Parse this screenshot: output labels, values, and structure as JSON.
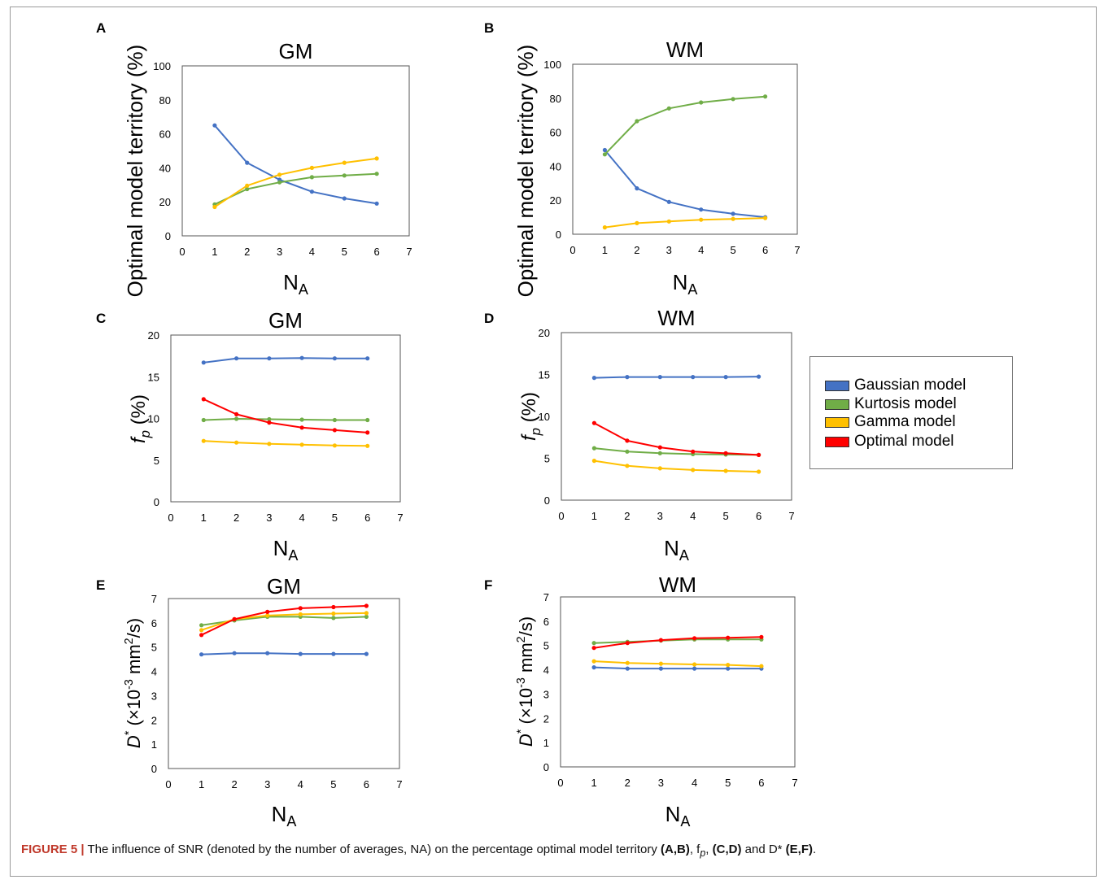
{
  "figure": {
    "caption_label": "FIGURE 5 |",
    "caption_text_1": " The influence of SNR (denoted by the number of averages, NA) on the percentage optimal model territory ",
    "caption_ref_1": "(A,B)",
    "caption_text_2": ", f",
    "caption_sub": "p",
    "caption_text_3": ", ",
    "caption_ref_2": "(C,D)",
    "caption_text_4": " and D* ",
    "caption_ref_3": "(E,F)",
    "caption_text_5": "."
  },
  "legend": {
    "items": [
      {
        "label": "Gaussian model",
        "color": "#4472C4"
      },
      {
        "label": "Kurtosis model",
        "color": "#70AD47"
      },
      {
        "label": "Gamma model",
        "color": "#FFC000"
      },
      {
        "label": "Optimal model",
        "color": "#FF0000"
      }
    ]
  },
  "chart_data": [
    {
      "panel": "A",
      "type": "line",
      "title": "GM",
      "xlabel": "N",
      "xlabel_sub": "A",
      "ylabel": "Optimal model territory (%)",
      "xlim": [
        0,
        7
      ],
      "ylim": [
        0,
        100
      ],
      "xticks": [
        0,
        1,
        2,
        3,
        4,
        5,
        6,
        7
      ],
      "yticks": [
        0,
        20,
        40,
        60,
        80,
        100
      ],
      "series": [
        {
          "name": "Gaussian model",
          "color": "#4472C4",
          "x": [
            1,
            2,
            3,
            4,
            5,
            6
          ],
          "y": [
            65,
            43,
            33,
            26,
            22,
            19
          ]
        },
        {
          "name": "Kurtosis model",
          "color": "#70AD47",
          "x": [
            1,
            2,
            3,
            4,
            5,
            6
          ],
          "y": [
            18.5,
            27.5,
            31.5,
            34.5,
            35.5,
            36.5
          ]
        },
        {
          "name": "Gamma model",
          "color": "#FFC000",
          "x": [
            1,
            2,
            3,
            4,
            5,
            6
          ],
          "y": [
            17,
            29.5,
            36,
            40,
            43,
            45.5
          ]
        }
      ]
    },
    {
      "panel": "B",
      "type": "line",
      "title": "WM",
      "xlabel": "N",
      "xlabel_sub": "A",
      "ylabel": "Optimal model territory (%)",
      "xlim": [
        0,
        7
      ],
      "ylim": [
        0,
        100
      ],
      "xticks": [
        0,
        1,
        2,
        3,
        4,
        5,
        6,
        7
      ],
      "yticks": [
        0,
        20,
        40,
        60,
        80,
        100
      ],
      "series": [
        {
          "name": "Gaussian model",
          "color": "#4472C4",
          "x": [
            1,
            2,
            3,
            4,
            5,
            6
          ],
          "y": [
            49.5,
            27,
            19,
            14.5,
            12,
            10
          ]
        },
        {
          "name": "Kurtosis model",
          "color": "#70AD47",
          "x": [
            1,
            2,
            3,
            4,
            5,
            6
          ],
          "y": [
            47,
            66.5,
            74,
            77.5,
            79.5,
            81
          ]
        },
        {
          "name": "Gamma model",
          "color": "#FFC000",
          "x": [
            1,
            2,
            3,
            4,
            5,
            6
          ],
          "y": [
            4,
            6.5,
            7.5,
            8.5,
            9,
            9.5
          ]
        }
      ]
    },
    {
      "panel": "C",
      "type": "line",
      "title": "GM",
      "xlabel": "N",
      "xlabel_sub": "A",
      "ylabel": "f",
      "ylabel_sub": "p",
      "ylabel_suffix": " (%)",
      "xlim": [
        0,
        7
      ],
      "ylim": [
        0,
        20
      ],
      "xticks": [
        0,
        1,
        2,
        3,
        4,
        5,
        6,
        7
      ],
      "yticks": [
        0,
        5,
        10,
        15,
        20
      ],
      "series": [
        {
          "name": "Gaussian model",
          "color": "#4472C4",
          "x": [
            1,
            2,
            3,
            4,
            5,
            6
          ],
          "y": [
            16.7,
            17.2,
            17.2,
            17.25,
            17.2,
            17.2
          ]
        },
        {
          "name": "Kurtosis model",
          "color": "#70AD47",
          "x": [
            1,
            2,
            3,
            4,
            5,
            6
          ],
          "y": [
            9.8,
            9.95,
            9.9,
            9.85,
            9.8,
            9.8
          ]
        },
        {
          "name": "Gamma model",
          "color": "#FFC000",
          "x": [
            1,
            2,
            3,
            4,
            5,
            6
          ],
          "y": [
            7.3,
            7.1,
            6.95,
            6.85,
            6.75,
            6.7
          ]
        },
        {
          "name": "Optimal model",
          "color": "#FF0000",
          "x": [
            1,
            2,
            3,
            4,
            5,
            6
          ],
          "y": [
            12.3,
            10.5,
            9.5,
            8.9,
            8.6,
            8.3
          ]
        }
      ]
    },
    {
      "panel": "D",
      "type": "line",
      "title": "WM",
      "xlabel": "N",
      "xlabel_sub": "A",
      "ylabel": "f",
      "ylabel_sub": "p",
      "ylabel_suffix": " (%)",
      "xlim": [
        0,
        7
      ],
      "ylim": [
        0,
        20
      ],
      "xticks": [
        0,
        1,
        2,
        3,
        4,
        5,
        6,
        7
      ],
      "yticks": [
        0,
        5,
        10,
        15,
        20
      ],
      "series": [
        {
          "name": "Gaussian model",
          "color": "#4472C4",
          "x": [
            1,
            2,
            3,
            4,
            5,
            6
          ],
          "y": [
            14.6,
            14.7,
            14.7,
            14.7,
            14.7,
            14.75
          ]
        },
        {
          "name": "Kurtosis model",
          "color": "#70AD47",
          "x": [
            1,
            2,
            3,
            4,
            5,
            6
          ],
          "y": [
            6.2,
            5.8,
            5.6,
            5.5,
            5.45,
            5.4
          ]
        },
        {
          "name": "Gamma model",
          "color": "#FFC000",
          "x": [
            1,
            2,
            3,
            4,
            5,
            6
          ],
          "y": [
            4.7,
            4.1,
            3.8,
            3.6,
            3.5,
            3.4
          ]
        },
        {
          "name": "Optimal model",
          "color": "#FF0000",
          "x": [
            1,
            2,
            3,
            4,
            5,
            6
          ],
          "y": [
            9.2,
            7.1,
            6.3,
            5.8,
            5.6,
            5.4
          ]
        }
      ]
    },
    {
      "panel": "E",
      "type": "line",
      "title": "GM",
      "xlabel": "N",
      "xlabel_sub": "A",
      "ylabel": "D",
      "ylabel_sup": "*",
      "ylabel_suffix": " (×10",
      "ylabel_sup2": "-3",
      "ylabel_suffix2": " mm",
      "ylabel_sup3": "2",
      "ylabel_suffix3": "/s)",
      "xlim": [
        0,
        7
      ],
      "ylim": [
        0,
        7
      ],
      "xticks": [
        0,
        1,
        2,
        3,
        4,
        5,
        6,
        7
      ],
      "yticks": [
        0,
        1,
        2,
        3,
        4,
        5,
        6,
        7
      ],
      "series": [
        {
          "name": "Gaussian model",
          "color": "#4472C4",
          "x": [
            1,
            2,
            3,
            4,
            5,
            6
          ],
          "y": [
            4.7,
            4.75,
            4.75,
            4.72,
            4.72,
            4.72
          ]
        },
        {
          "name": "Kurtosis model",
          "color": "#70AD47",
          "x": [
            1,
            2,
            3,
            4,
            5,
            6
          ],
          "y": [
            5.9,
            6.1,
            6.25,
            6.25,
            6.2,
            6.25
          ]
        },
        {
          "name": "Gamma model",
          "color": "#FFC000",
          "x": [
            1,
            2,
            3,
            4,
            5,
            6
          ],
          "y": [
            5.7,
            6.15,
            6.3,
            6.35,
            6.38,
            6.4
          ]
        },
        {
          "name": "Optimal model",
          "color": "#FF0000",
          "x": [
            1,
            2,
            3,
            4,
            5,
            6
          ],
          "y": [
            5.5,
            6.15,
            6.45,
            6.6,
            6.65,
            6.7
          ]
        }
      ]
    },
    {
      "panel": "F",
      "type": "line",
      "title": "WM",
      "xlabel": "N",
      "xlabel_sub": "A",
      "ylabel": "D",
      "ylabel_sup": "*",
      "ylabel_suffix": " (×10",
      "ylabel_sup2": "-3",
      "ylabel_suffix2": " mm",
      "ylabel_sup3": "2",
      "ylabel_suffix3": "/s)",
      "xlim": [
        0,
        7
      ],
      "ylim": [
        0,
        7
      ],
      "xticks": [
        0,
        1,
        2,
        3,
        4,
        5,
        6,
        7
      ],
      "yticks": [
        0,
        1,
        2,
        3,
        4,
        5,
        6,
        7
      ],
      "series": [
        {
          "name": "Gaussian model",
          "color": "#4472C4",
          "x": [
            1,
            2,
            3,
            4,
            5,
            6
          ],
          "y": [
            4.1,
            4.05,
            4.05,
            4.05,
            4.05,
            4.05
          ]
        },
        {
          "name": "Kurtosis model",
          "color": "#70AD47",
          "x": [
            1,
            2,
            3,
            4,
            5,
            6
          ],
          "y": [
            5.1,
            5.15,
            5.2,
            5.25,
            5.25,
            5.25
          ]
        },
        {
          "name": "Gamma model",
          "color": "#FFC000",
          "x": [
            1,
            2,
            3,
            4,
            5,
            6
          ],
          "y": [
            4.35,
            4.28,
            4.25,
            4.22,
            4.2,
            4.15
          ]
        },
        {
          "name": "Optimal model",
          "color": "#FF0000",
          "x": [
            1,
            2,
            3,
            4,
            5,
            6
          ],
          "y": [
            4.9,
            5.1,
            5.22,
            5.3,
            5.32,
            5.35
          ]
        }
      ]
    }
  ]
}
